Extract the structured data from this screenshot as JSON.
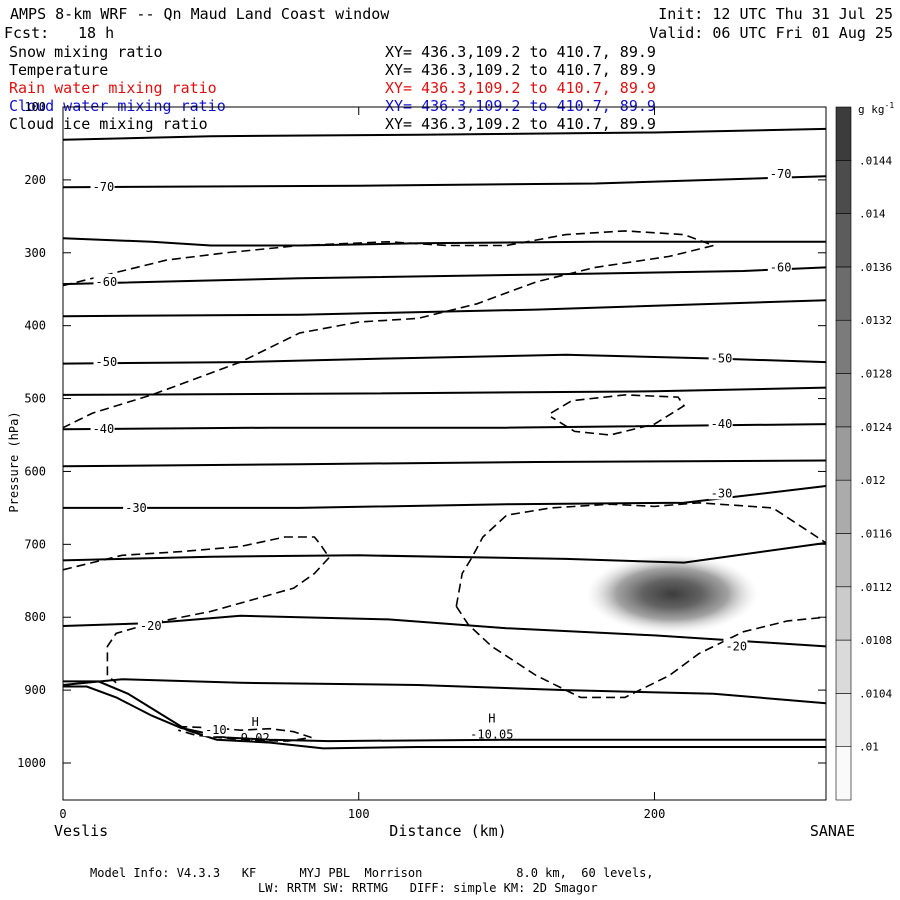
{
  "header": {
    "title": "AMPS 8-km WRF -- Qn Maud Land Coast window",
    "init": "Init: 12 UTC Thu 31 Jul 25",
    "fcst_label": "Fcst:",
    "fcst_value": "18 h",
    "valid": "Valid: 06 UTC Fri 01 Aug 25"
  },
  "fields": [
    {
      "name": "Snow mixing ratio",
      "xy": "XY= 436.3,109.2 to 410.7, 89.9",
      "color": "#000000"
    },
    {
      "name": "Temperature",
      "xy": "XY= 436.3,109.2 to 410.7, 89.9",
      "color": "#000000"
    },
    {
      "name": "Rain water mixing ratio",
      "xy": "XY= 436.3,109.2 to 410.7, 89.9",
      "color": "#e01010"
    },
    {
      "name": "Cloud water mixing ratio",
      "xy": "XY= 436.3,109.2 to 410.7, 89.9",
      "color": "#1010d0"
    },
    {
      "name": "Cloud ice mixing ratio",
      "xy": "XY= 436.3,109.2 to 410.7, 89.9",
      "color": "#000000"
    }
  ],
  "footer": {
    "line1": "Model Info: V4.3.3   KF      MYJ PBL  Morrison             8.0 km,  60 levels,",
    "line2": "LW: RRTM SW: RRTMG   DIFF: simple KM: 2D Smagor"
  },
  "chart_data": {
    "type": "contour",
    "ylabel": "Pressure (hPa)",
    "xlabel": "Distance (km)",
    "x_left_label": "Veslis",
    "x_right_label": "SANAE",
    "xlim": [
      0,
      258
    ],
    "ylim": [
      1050,
      100
    ],
    "x_ticks": [
      0,
      100,
      200
    ],
    "y_ticks": [
      100,
      200,
      300,
      400,
      500,
      600,
      700,
      800,
      900,
      1000
    ],
    "colorbar": {
      "unit": "g kg",
      "unit_exp": "-1",
      "levels": [
        ".01",
        ".0104",
        ".0108",
        ".0112",
        ".0116",
        ".012",
        ".0124",
        ".0128",
        ".0132",
        ".0136",
        ".014",
        ".0144"
      ]
    },
    "isotherms": [
      {
        "label": "-70",
        "points": [
          [
            0,
            145
          ],
          [
            50,
            140
          ],
          [
            120,
            138
          ],
          [
            200,
            135
          ],
          [
            258,
            130
          ]
        ]
      },
      {
        "label": "-70",
        "points": [
          [
            0,
            210
          ],
          [
            100,
            208
          ],
          [
            180,
            205
          ],
          [
            258,
            195
          ]
        ]
      },
      {
        "label": "",
        "points": [
          [
            0,
            280
          ],
          [
            30,
            285
          ],
          [
            50,
            290
          ],
          [
            80,
            290
          ],
          [
            120,
            287
          ],
          [
            180,
            285
          ],
          [
            258,
            285
          ]
        ]
      },
      {
        "label": "-60",
        "points": [
          [
            0,
            343
          ],
          [
            80,
            335
          ],
          [
            160,
            330
          ],
          [
            230,
            325
          ],
          [
            258,
            320
          ]
        ]
      },
      {
        "label": "",
        "points": [
          [
            0,
            387
          ],
          [
            80,
            385
          ],
          [
            160,
            378
          ],
          [
            258,
            365
          ]
        ]
      },
      {
        "label": "-50",
        "points": [
          [
            0,
            452
          ],
          [
            60,
            450
          ],
          [
            110,
            445
          ],
          [
            170,
            440
          ],
          [
            220,
            445
          ],
          [
            258,
            450
          ]
        ]
      },
      {
        "label": "",
        "points": [
          [
            0,
            495
          ],
          [
            100,
            493
          ],
          [
            200,
            490
          ],
          [
            258,
            485
          ]
        ]
      },
      {
        "label": "-40",
        "points": [
          [
            0,
            542
          ],
          [
            70,
            540
          ],
          [
            150,
            540
          ],
          [
            258,
            535
          ]
        ]
      },
      {
        "label": "",
        "points": [
          [
            0,
            593
          ],
          [
            80,
            590
          ],
          [
            160,
            587
          ],
          [
            258,
            585
          ]
        ]
      },
      {
        "label": "-30",
        "points": [
          [
            0,
            650
          ],
          [
            80,
            650
          ],
          [
            150,
            645
          ],
          [
            210,
            643
          ],
          [
            258,
            620
          ]
        ]
      },
      {
        "label": "",
        "points": [
          [
            0,
            722
          ],
          [
            50,
            717
          ],
          [
            100,
            715
          ],
          [
            170,
            720
          ],
          [
            210,
            725
          ],
          [
            258,
            698
          ]
        ]
      },
      {
        "label": "-20",
        "points": [
          [
            0,
            812
          ],
          [
            30,
            808
          ],
          [
            60,
            798
          ],
          [
            110,
            803
          ],
          [
            150,
            815
          ],
          [
            200,
            825
          ],
          [
            258,
            840
          ]
        ]
      },
      {
        "label": "",
        "points": [
          [
            0,
            893
          ],
          [
            20,
            885
          ],
          [
            60,
            890
          ],
          [
            120,
            893
          ],
          [
            170,
            900
          ],
          [
            220,
            905
          ],
          [
            258,
            918
          ]
        ]
      },
      {
        "label": "",
        "points": [
          [
            0,
            895
          ],
          [
            8,
            895
          ],
          [
            18,
            910
          ],
          [
            30,
            935
          ],
          [
            40,
            952
          ],
          [
            55,
            965
          ],
          [
            70,
            968
          ],
          [
            90,
            970
          ],
          [
            150,
            968
          ],
          [
            220,
            968
          ],
          [
            258,
            968
          ]
        ]
      },
      {
        "label": "",
        "points": [
          [
            0,
            888
          ],
          [
            12,
            888
          ],
          [
            22,
            905
          ],
          [
            32,
            930
          ],
          [
            42,
            955
          ],
          [
            52,
            968
          ],
          [
            70,
            972
          ],
          [
            88,
            980
          ],
          [
            120,
            978
          ],
          [
            180,
            978
          ],
          [
            258,
            978
          ]
        ]
      }
    ],
    "isotherm_labels": [
      {
        "text": "-70",
        "x": 10,
        "p": 210
      },
      {
        "text": "-70",
        "x": 239,
        "p": 192
      },
      {
        "text": "-60",
        "x": 11,
        "p": 340
      },
      {
        "text": "-60",
        "x": 239,
        "p": 320
      },
      {
        "text": "-50",
        "x": 11,
        "p": 450
      },
      {
        "text": "-50",
        "x": 219,
        "p": 445
      },
      {
        "text": "-40",
        "x": 10,
        "p": 542
      },
      {
        "text": "-40",
        "x": 219,
        "p": 535
      },
      {
        "text": "-30",
        "x": 21,
        "p": 650
      },
      {
        "text": "-30",
        "x": 219,
        "p": 630
      },
      {
        "text": "-20",
        "x": 26,
        "p": 812
      },
      {
        "text": "-20",
        "x": 224,
        "p": 840
      },
      {
        "text": "-10",
        "x": 48,
        "p": 955
      }
    ],
    "snow_contours": [
      {
        "points": [
          [
            0,
            345
          ],
          [
            15,
            330
          ],
          [
            35,
            310
          ],
          [
            55,
            300
          ],
          [
            80,
            290
          ],
          [
            110,
            285
          ],
          [
            130,
            290
          ],
          [
            150,
            290
          ],
          [
            170,
            275
          ],
          [
            190,
            270
          ],
          [
            210,
            275
          ],
          [
            220,
            290
          ],
          [
            205,
            305
          ],
          [
            180,
            320
          ],
          [
            160,
            340
          ],
          [
            140,
            370
          ],
          [
            120,
            390
          ],
          [
            100,
            395
          ],
          [
            80,
            410
          ],
          [
            60,
            450
          ],
          [
            30,
            495
          ],
          [
            10,
            520
          ],
          [
            0,
            540
          ]
        ]
      },
      {
        "points": [
          [
            165,
            520
          ],
          [
            172,
            503
          ],
          [
            190,
            495
          ],
          [
            208,
            498
          ],
          [
            210,
            510
          ],
          [
            200,
            535
          ],
          [
            185,
            550
          ],
          [
            173,
            545
          ],
          [
            165,
            525
          ]
        ]
      },
      {
        "points": [
          [
            0,
            735
          ],
          [
            20,
            715
          ],
          [
            40,
            710
          ],
          [
            60,
            703
          ],
          [
            75,
            690
          ],
          [
            85,
            690
          ],
          [
            87,
            700
          ],
          [
            90,
            718
          ],
          [
            85,
            740
          ],
          [
            78,
            760
          ],
          [
            65,
            775
          ],
          [
            50,
            792
          ],
          [
            30,
            808
          ],
          [
            18,
            822
          ],
          [
            15,
            840
          ],
          [
            15,
            860
          ],
          [
            15,
            880
          ],
          [
            18,
            890
          ]
        ]
      },
      {
        "points": [
          [
            133,
            785
          ],
          [
            135,
            740
          ],
          [
            138,
            720
          ],
          [
            142,
            690
          ],
          [
            150,
            660
          ],
          [
            165,
            650
          ],
          [
            185,
            645
          ],
          [
            200,
            648
          ],
          [
            215,
            643
          ],
          [
            240,
            650
          ],
          [
            255,
            690
          ],
          [
            258,
            698
          ]
        ]
      },
      {
        "points": [
          [
            133,
            785
          ],
          [
            137,
            810
          ],
          [
            145,
            840
          ],
          [
            160,
            880
          ],
          [
            175,
            910
          ],
          [
            190,
            910
          ],
          [
            205,
            880
          ],
          [
            215,
            850
          ],
          [
            230,
            820
          ],
          [
            245,
            805
          ],
          [
            258,
            800
          ]
        ]
      },
      {
        "points": [
          [
            39,
            950
          ],
          [
            52,
            952
          ],
          [
            60,
            955
          ],
          [
            70,
            953
          ],
          [
            78,
            957
          ],
          [
            84,
            965
          ],
          [
            76,
            970
          ],
          [
            65,
            969
          ],
          [
            55,
            966
          ],
          [
            45,
            962
          ],
          [
            39,
            955
          ]
        ]
      }
    ],
    "highs": [
      {
        "label": "H",
        "value": "9.02",
        "x": 65,
        "p": 955
      },
      {
        "label": "H",
        "value": "-10.05",
        "x": 145,
        "p": 950
      }
    ],
    "shaded_max": {
      "center_x": 206,
      "center_p": 768,
      "rx_km": 20,
      "ry_hpa": 45,
      "value": 0.0136
    }
  }
}
